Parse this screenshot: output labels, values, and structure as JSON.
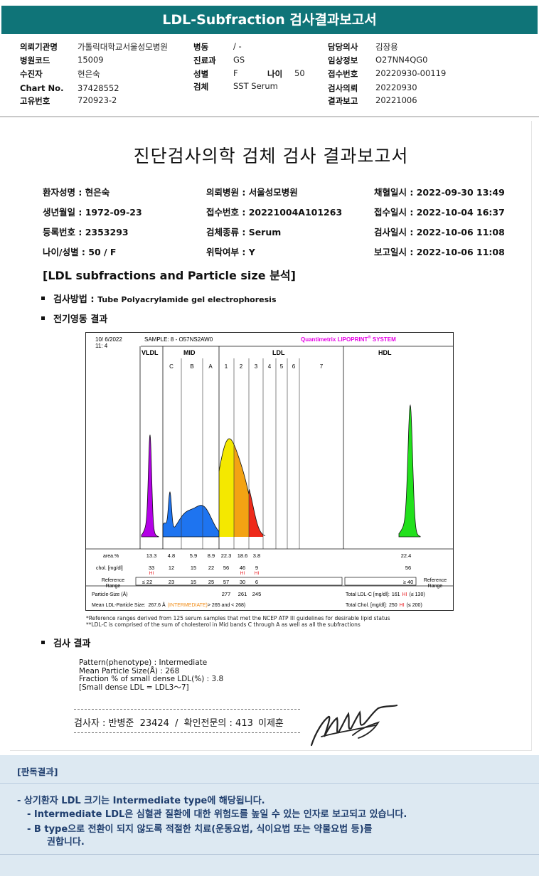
{
  "title": "LDL-Subfraction 검사결과보고서",
  "header": {
    "col1": [
      {
        "label": "의뢰기관명",
        "value": "가톨릭대학교서울성모병원"
      },
      {
        "label": "병원코드",
        "value": "15009"
      },
      {
        "label": "수진자",
        "value": "현은숙"
      },
      {
        "label": "Chart No.",
        "value": "37428552"
      },
      {
        "label": "고유번호",
        "value": "720923-2"
      }
    ],
    "col2": [
      {
        "label": "병동",
        "value": "/ -"
      },
      {
        "label": "진료과",
        "value": "GS"
      },
      {
        "label": "성별",
        "value": "F"
      },
      {
        "label": "검체",
        "value": "SST Serum"
      }
    ],
    "age_label": "나이",
    "age_value": "50",
    "col3": [
      {
        "label": "담당의사",
        "value": "김장용"
      },
      {
        "label": "임상정보",
        "value": "O27NN4QG0"
      },
      {
        "label": "접수번호",
        "value": "20220930-00119"
      },
      {
        "label": "검사의뢰",
        "value": "20220930"
      },
      {
        "label": "결과보고",
        "value": "20221006"
      }
    ]
  },
  "report": {
    "title": "진단검사의학 검체 검사 결과보고서",
    "fields": [
      [
        "환자성명 : 현은숙",
        "의뢰병원 : 서울성모병원",
        "채혈일시 : 2022-09-30 13:49"
      ],
      [
        "생년월일 : 1972-09-23",
        "접수번호 : 20221004A101263",
        "접수일시 : 2022-10-04 16:37"
      ],
      [
        "등록번호 : 2353293",
        "검체종류 : Serum",
        "검사일시 : 2022-10-06 11:08"
      ],
      [
        "나이/성별 : 50 / F",
        "위탁여부 : Y",
        "보고일시 : 2022-10-06 11:08"
      ]
    ],
    "section_title": "[LDL subfractions and Particle size 분석]",
    "method_label": "검사방법 :",
    "method_value": "Tube Polyacrylamide gel electrophoresis",
    "electro_label": "전기영동 결과",
    "result_label": "검사 결과",
    "results": [
      "Pattern(phenotype) : Intermediate",
      "Mean Particle Size(Å) : 268",
      "Fraction % of small dense LDL(%) : 3.8",
      "[Small dense LDL = LDL3～7]"
    ],
    "signer": {
      "label1": "검사자 : ",
      "name1": "반병준",
      "id1": "23424",
      "sep": "/",
      "label2": "확인전문의 : ",
      "id2": "413",
      "name2": "이제훈"
    },
    "notes": [
      "*Reference ranges derived from 125 serum samples that met the NCEP ATP III guidelines for desirable lipid status",
      "**LDL-C is comprised of the sum of cholesterol in Mid bands C through A as well as all the subfractions"
    ]
  },
  "chart_data": {
    "type": "area",
    "date": "10/ 6/2022",
    "time": "11: 4",
    "sample": "SAMPLE:   8 - O57NS2AW0",
    "brand": "Quantimetrix LIPOPRINT",
    "brand_reg": "®",
    "brand_tail": " SYSTEM",
    "groups": [
      "VLDL",
      "MID",
      "LDL",
      "HDL"
    ],
    "bands": [
      "C",
      "B",
      "A",
      "1",
      "2",
      "3",
      "4",
      "5",
      "6",
      "7"
    ],
    "rows": {
      "area_label": "area.%",
      "area": [
        "13.3",
        "4.8",
        "5.9",
        "8.9",
        "22.3",
        "18.6",
        "3.8"
      ],
      "area_hdl": "22.4",
      "chol_label": "chol. [mg/dl]",
      "chol": [
        "33",
        "12",
        "15",
        "22",
        "56",
        "46",
        "9"
      ],
      "chol_hdl": "56",
      "hi_label": "HI",
      "ref_label": "Reference Range",
      "ref": [
        "≤ 22",
        "23",
        "15",
        "25",
        "57",
        "30",
        "6"
      ],
      "ref_hdl": "≥ 40",
      "particle_label": "Particle-Size (Å)",
      "particle": [
        "277",
        "261",
        "245"
      ],
      "mean_label": "Mean LDL-Particle Size:",
      "mean_value": "267.6 Å",
      "mean_class": "(INTERMEDIATE)",
      "mean_range": "> 265 and < 268)",
      "total_ldl_label": "Total LDL-C [mg/dl]:",
      "total_ldl": "161",
      "total_ldl_ref": "(≤ 130)",
      "total_chol_label": "Total Chol. [mg/dl]:",
      "total_chol": "250",
      "total_chol_ref": "(≤ 200)"
    },
    "colors": {
      "vldl": "#b300e6",
      "mid": "#1e74f0",
      "ldl1": "#f4e800",
      "ldl2": "#f3a313",
      "ldl3": "#ee2a1a",
      "hdl": "#22e01c",
      "hi": "#e8141a",
      "intermediate": "#f08a12",
      "brand": "#e600e6"
    }
  },
  "interpretation": {
    "title": "[판독결과]",
    "lines": [
      "- 상기환자 LDL 크기는 Intermediate type에 해당됩니다.",
      "- Intermediate LDL은 심혈관 질환에 대한 위험도를 높일 수 있는 인자로 보고되고 있습니다.",
      "- B type으로 전환이 되지 않도록 적절한 치료(운동요법, 식이요법 또는 약물요법 등)를",
      "권합니다."
    ]
  }
}
